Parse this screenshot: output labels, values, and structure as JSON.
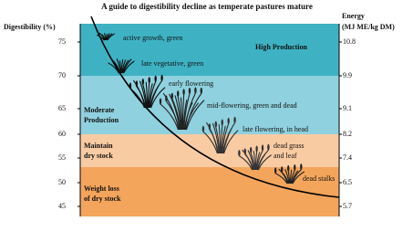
{
  "title": "A guide to digestibility decline as temperate pastures mature",
  "left_axis": {
    "label": "Digestibility (%)",
    "ticks": [
      "75",
      "70",
      "65",
      "60",
      "55",
      "50",
      "45"
    ]
  },
  "right_axis": {
    "label_lines": [
      "Energy",
      "(MJ ME/kg DM)"
    ],
    "ticks": [
      "10.8",
      "9.9",
      "9.1",
      "8.2",
      "7.4",
      "6.5",
      "5.7"
    ]
  },
  "zones": [
    {
      "lines": [
        "High Production"
      ]
    },
    {
      "lines": [
        "Moderate",
        "Production"
      ]
    },
    {
      "lines": [
        "Maintain",
        "dry stock"
      ]
    },
    {
      "lines": [
        "Weight loss",
        "of dry stock"
      ]
    }
  ],
  "stages": [
    {
      "lines": [
        "active growth, green"
      ]
    },
    {
      "lines": [
        "late vegetative, green"
      ]
    },
    {
      "lines": [
        "early flowering"
      ]
    },
    {
      "lines": [
        "mid-flowering, green and dead"
      ]
    },
    {
      "lines": [
        "late flowering, in head"
      ]
    },
    {
      "lines": [
        "dead grass",
        "and leaf"
      ]
    },
    {
      "lines": [
        "dead stalks"
      ]
    }
  ]
}
